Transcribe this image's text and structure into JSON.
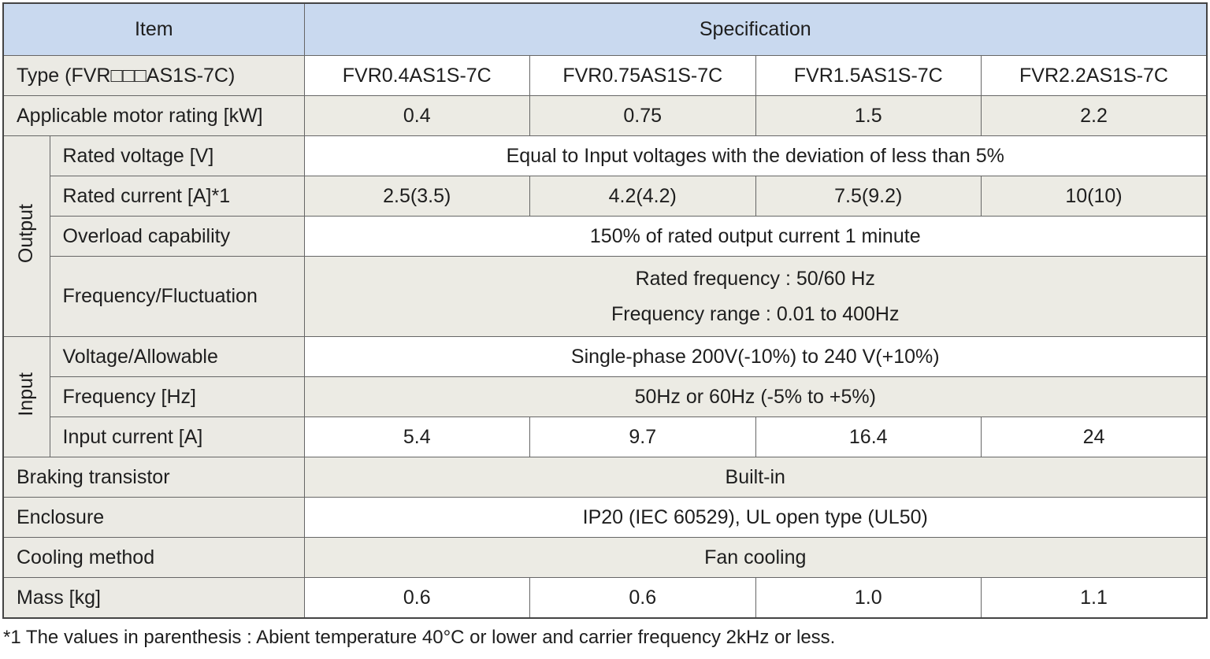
{
  "table": {
    "header": {
      "item": "Item",
      "specification": "Specification"
    },
    "type": {
      "item": "Type (FVR□□□AS1S-7C)",
      "values": [
        "FVR0.4AS1S-7C",
        "FVR0.75AS1S-7C",
        "FVR1.5AS1S-7C",
        "FVR2.2AS1S-7C"
      ]
    },
    "motor": {
      "item": "Applicable motor rating [kW]",
      "values": [
        "0.4",
        "0.75",
        "1.5",
        "2.2"
      ]
    },
    "output": {
      "label": "Output",
      "rated_voltage": {
        "item": "Rated voltage [V]",
        "value": "Equal to Input voltages with the deviation of less than 5%"
      },
      "rated_current": {
        "item": "Rated current [A]*1",
        "values": [
          "2.5(3.5)",
          "4.2(4.2)",
          "7.5(9.2)",
          "10(10)"
        ]
      },
      "overload": {
        "item": "Overload capability",
        "value": "150% of rated output current  1 minute"
      },
      "frequency": {
        "item": "Frequency/Fluctuation",
        "lines": [
          "Rated frequency : 50/60 Hz",
          "Frequency range : 0.01 to 400Hz"
        ]
      }
    },
    "input": {
      "label": "Input",
      "voltage": {
        "item": "Voltage/Allowable",
        "value": "Single-phase 200V(-10%) to 240 V(+10%)"
      },
      "frequency": {
        "item": "Frequency [Hz]",
        "value": "50Hz or 60Hz (-5% to +5%)"
      },
      "current": {
        "item": "Input current [A]",
        "values": [
          "5.4",
          "9.7",
          "16.4",
          "24"
        ]
      }
    },
    "braking": {
      "item": "Braking transistor",
      "value": "Built-in"
    },
    "enclosure": {
      "item": "Enclosure",
      "value": "IP20 (IEC 60529), UL open type (UL50)"
    },
    "cooling": {
      "item": "Cooling method",
      "value": "Fan cooling"
    },
    "mass": {
      "item": "Mass [kg]",
      "values": [
        "0.6",
        "0.6",
        "1.0",
        "1.1"
      ]
    }
  },
  "footnote": "*1 The values in parenthesis : Abient temperature 40°C or lower and carrier frequency 2kHz or less."
}
